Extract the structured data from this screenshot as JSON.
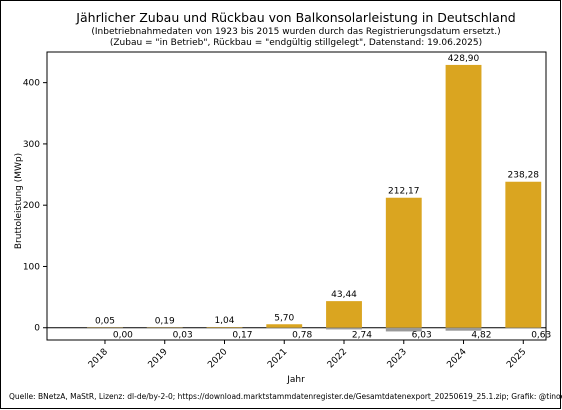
{
  "chart_data": {
    "type": "bar",
    "title": "Jährlicher Zubau und Rückbau von Balkonsolarleistung in Deutschland",
    "subtitle_lines": [
      "(Inbetriebnahmedaten von 1923 bis 2015 wurden durch das Registrierungsdatum ersetzt.)",
      "(Zubau = \"in Betrieb\", Rückbau = \"endgültig stillgelegt\", Datenstand: 19.06.2025)"
    ],
    "xlabel": "Jahr",
    "ylabel": "Bruttoleistung (MWp)",
    "categories": [
      "2018",
      "2019",
      "2020",
      "2021",
      "2022",
      "2023",
      "2024",
      "2025"
    ],
    "series": [
      {
        "values": [
          0.05,
          0.19,
          1.04,
          5.7,
          43.44,
          212.17,
          428.9,
          238.28
        ],
        "labels": [
          "0,05",
          "0,19",
          "1,04",
          "5,70",
          "43,44",
          "212,17",
          "428,90",
          "238,28"
        ],
        "color": "#DAA520"
      },
      {
        "values": [
          -0.0,
          -0.03,
          -0.17,
          -0.78,
          -2.74,
          -6.03,
          -4.82,
          -0.63
        ],
        "labels": [
          "0,00",
          "0,03",
          "0,17",
          "0,78",
          "2,74",
          "6,03",
          "4,82",
          "0,63"
        ],
        "color": "#999999"
      }
    ],
    "ylim": [
      -20,
      450
    ],
    "yticks": [
      0,
      100,
      200,
      300,
      400
    ],
    "grid": false,
    "source": "Quelle: BNetzA, MaStR, Lizenz: dl-de/by-2-0; https://download.marktstammdatenregister.de/Gesamtdatenexport_20250619_25.1.zip; Grafik: @tinoeberl@mastodon.online"
  }
}
